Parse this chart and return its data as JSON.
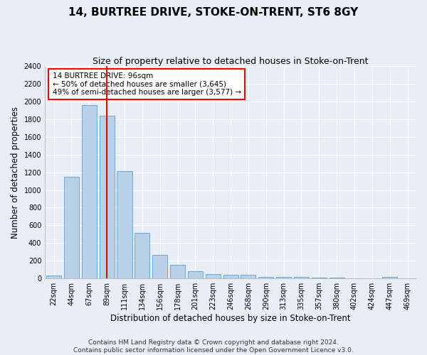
{
  "title": "14, BURTREE DRIVE, STOKE-ON-TRENT, ST6 8GY",
  "subtitle": "Size of property relative to detached houses in Stoke-on-Trent",
  "xlabel": "Distribution of detached houses by size in Stoke-on-Trent",
  "ylabel": "Number of detached properties",
  "bar_labels": [
    "22sqm",
    "44sqm",
    "67sqm",
    "89sqm",
    "111sqm",
    "134sqm",
    "156sqm",
    "178sqm",
    "201sqm",
    "223sqm",
    "246sqm",
    "268sqm",
    "290sqm",
    "313sqm",
    "335sqm",
    "357sqm",
    "380sqm",
    "402sqm",
    "424sqm",
    "447sqm",
    "469sqm"
  ],
  "bar_values": [
    30,
    1150,
    1960,
    1840,
    1210,
    515,
    265,
    155,
    85,
    50,
    40,
    40,
    20,
    20,
    15,
    10,
    10,
    5,
    5,
    20,
    5
  ],
  "bar_color": "#b8d0e8",
  "bar_edge_color": "#5a9fd4",
  "property_bin_index": 3,
  "annotation_line1": "14 BURTREE DRIVE: 96sqm",
  "annotation_line2": "← 50% of detached houses are smaller (3,645)",
  "annotation_line3": "49% of semi-detached houses are larger (3,577) →",
  "vline_color": "red",
  "annotation_box_color": "white",
  "annotation_box_edge": "red",
  "ylim": [
    0,
    2400
  ],
  "yticks": [
    0,
    200,
    400,
    600,
    800,
    1000,
    1200,
    1400,
    1600,
    1800,
    2000,
    2200,
    2400
  ],
  "footnote1": "Contains HM Land Registry data © Crown copyright and database right 2024.",
  "footnote2": "Contains public sector information licensed under the Open Government Licence v3.0.",
  "bg_color": "#e8eef5",
  "grid_color": "#ffffff",
  "title_fontsize": 11,
  "subtitle_fontsize": 9,
  "axis_label_fontsize": 8.5,
  "tick_fontsize": 7,
  "annotation_fontsize": 7.5,
  "footnote_fontsize": 6.5
}
